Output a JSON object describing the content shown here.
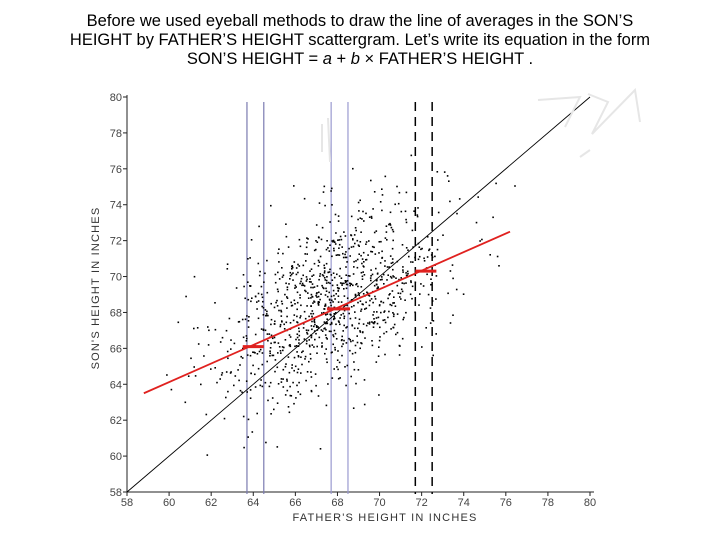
{
  "slide": {
    "heading_lines": [
      "Before we used eyeball methods to draw the line of  averages in the SON’S",
      "HEIGHT by FATHER’S HEIGHT scattergram. Let’s write its equation in the form",
      "SON’S HEIGHT = "
    ],
    "eq_a": "a",
    "eq_plus": " + ",
    "eq_b": "b",
    "eq_tail": " × FATHER’S HEIGHT ."
  },
  "chart_data": {
    "type": "scatter",
    "title": "",
    "xlabel": "FATHER'S HEIGHT IN INCHES",
    "ylabel": "SON'S HEIGHT IN INCHES",
    "xlim": [
      58,
      80
    ],
    "ylim": [
      58,
      80
    ],
    "x_ticks": [
      "58",
      "60",
      "62",
      "64",
      "66",
      "68",
      "70",
      "72",
      "74",
      "76",
      "78",
      "80"
    ],
    "y_ticks": [
      "58",
      "60",
      "62",
      "64",
      "66",
      "68",
      "70",
      "72",
      "74",
      "76",
      "78",
      "80"
    ],
    "scatter_cloud": {
      "center_x": 67.7,
      "center_y": 68.7,
      "sd_x": 2.7,
      "sd_y": 2.8,
      "correlation": 0.5,
      "n_points": 1078
    },
    "sd_line": {
      "x": [
        58,
        80
      ],
      "y": [
        58,
        80
      ]
    },
    "regression_line": {
      "x": [
        58.8,
        76.2
      ],
      "y": [
        63.5,
        72.5
      ]
    },
    "strip_averages": [
      {
        "x": [
          63.5,
          64.5
        ],
        "y": 66.1
      },
      {
        "x": [
          67.5,
          68.6
        ],
        "y": 68.2
      },
      {
        "x": [
          71.7,
          72.7
        ],
        "y": 70.3
      }
    ],
    "strips": [
      {
        "x": [
          63.7,
          64.5
        ],
        "style": "solid",
        "color": "#7b7bb0"
      },
      {
        "x": [
          67.7,
          68.5
        ],
        "style": "solid",
        "color": "#9a9ad0"
      },
      {
        "x": [
          71.7,
          72.5
        ],
        "style": "dashed",
        "color": "#000000"
      }
    ],
    "colors": {
      "points": "#000000",
      "sd_line": "#000000",
      "regression": "#e0211f",
      "strip_avg": "#e0211f"
    }
  }
}
